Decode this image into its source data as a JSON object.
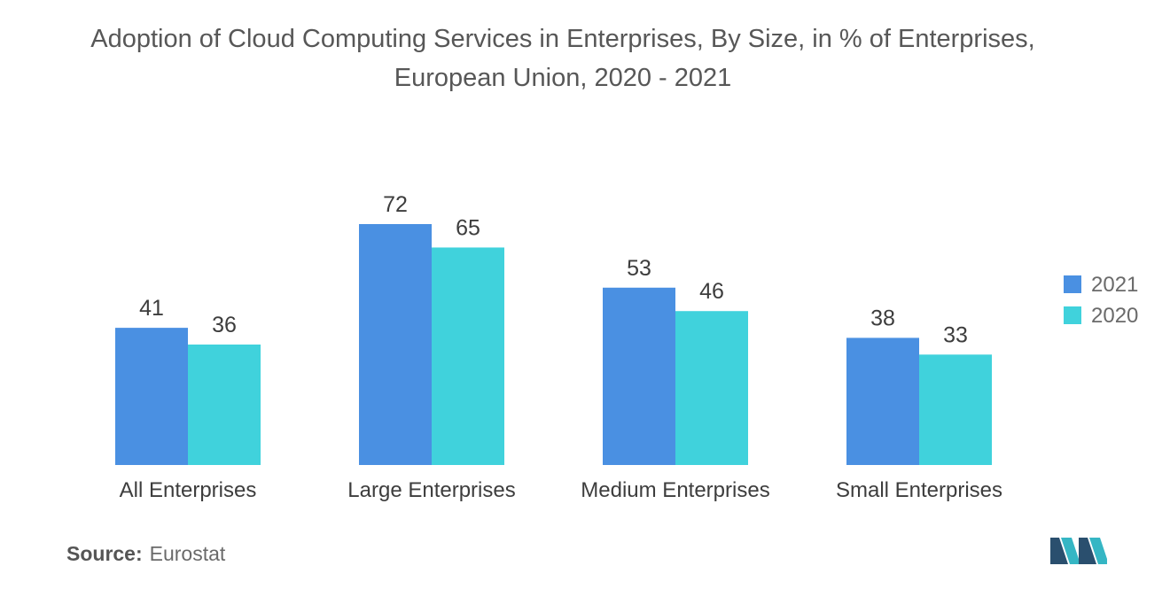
{
  "title": "Adoption of Cloud Computing Services in Enterprises, By Size, in % of Enterprises, European Union, 2020 - 2021",
  "source_label": "Source:",
  "source_value": "Eurostat",
  "chart_data": {
    "type": "bar",
    "title": "Adoption of Cloud Computing Services in Enterprises, By Size, in % of Enterprises, European Union, 2020 - 2021",
    "categories": [
      "All Enterprises",
      "Large Enterprises",
      "Medium Enterprises",
      "Small Enterprises"
    ],
    "series": [
      {
        "name": "2021",
        "values": [
          41,
          72,
          53,
          38
        ],
        "color": "#4a90e2"
      },
      {
        "name": "2020",
        "values": [
          36,
          65,
          46,
          33
        ],
        "color": "#40d2dc"
      }
    ],
    "xlabel": "",
    "ylabel": "",
    "ylim": [
      0,
      72
    ],
    "grid": false,
    "legend_position": "right"
  },
  "colors": {
    "logo_dark": "#2a4f6e",
    "logo_teal": "#35b6c4"
  },
  "icons": {
    "logo": "company-logo-icon"
  }
}
